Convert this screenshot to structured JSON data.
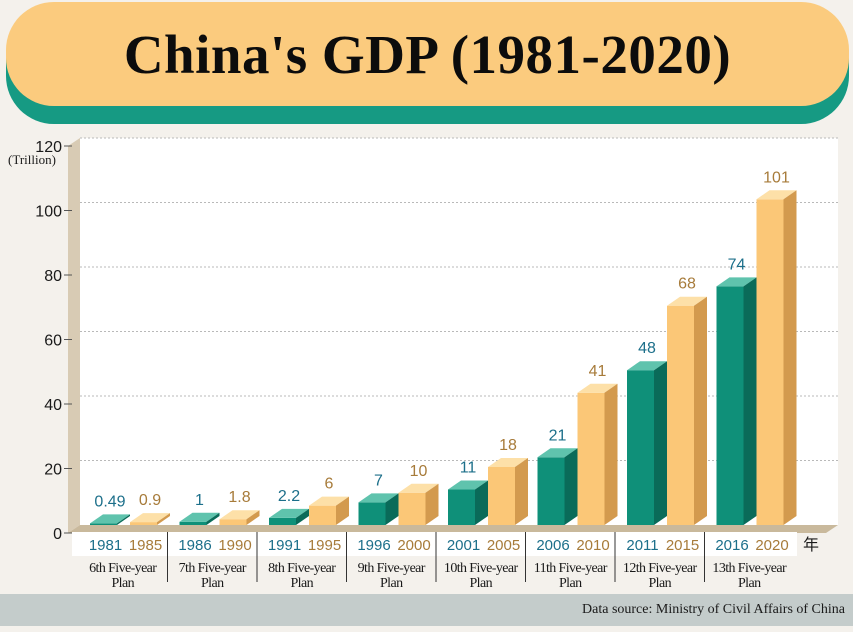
{
  "title": "China's GDP (1981-2020)",
  "source": "Data source: Ministry of Civil Affairs of China",
  "colors": {
    "teal": "#0f9079",
    "teal_top": "#5fc3ad",
    "teal_side": "#0a6b59",
    "gold": "#fbc777",
    "gold_top": "#fde0a8",
    "gold_side": "#d39a4e",
    "accent_band": "#169a83",
    "title_bg": "#fbcb7e"
  },
  "chart_data": {
    "type": "bar",
    "title": "China's GDP (1981-2020)",
    "ylabel": "(Trillion)",
    "xlabel": "年",
    "ylim": [
      0,
      120
    ],
    "yticks": [
      0,
      20,
      40,
      60,
      80,
      100,
      120
    ],
    "categories": [
      "1981",
      "1985",
      "1986",
      "1990",
      "1991",
      "1995",
      "1996",
      "2000",
      "2001",
      "2005",
      "2006",
      "2010",
      "2011",
      "2015",
      "2016",
      "2020"
    ],
    "values": [
      0.49,
      0.9,
      1,
      1.8,
      2.2,
      6,
      7,
      10,
      11,
      18,
      21,
      41,
      48,
      68,
      74,
      101
    ],
    "value_labels": [
      "0.49",
      "0.9",
      "1",
      "1.8",
      "2.2",
      "6",
      "7",
      "10",
      "11",
      "18",
      "21",
      "41",
      "48",
      "68",
      "74",
      "101"
    ],
    "groups": [
      {
        "plan": [
          "6th Five-year",
          "Plan"
        ],
        "start": "1981",
        "end": "1985"
      },
      {
        "plan": [
          "7th Five-year",
          "Plan"
        ],
        "start": "1986",
        "end": "1990"
      },
      {
        "plan": [
          "8th Five-year",
          "Plan"
        ],
        "start": "1991",
        "end": "1995"
      },
      {
        "plan": [
          "9th Five-year",
          "Plan"
        ],
        "start": "1996",
        "end": "2000"
      },
      {
        "plan": [
          "10th Five-year",
          "Plan"
        ],
        "start": "2001",
        "end": "2005"
      },
      {
        "plan": [
          "11th Five-year",
          "Plan"
        ],
        "start": "2006",
        "end": "2010"
      },
      {
        "plan": [
          "12th Five-year",
          "Plan"
        ],
        "start": "2011",
        "end": "2015"
      },
      {
        "plan": [
          "13th Five-year",
          "Plan"
        ],
        "start": "2016",
        "end": "2020"
      }
    ],
    "grid": true,
    "legend": "none"
  }
}
